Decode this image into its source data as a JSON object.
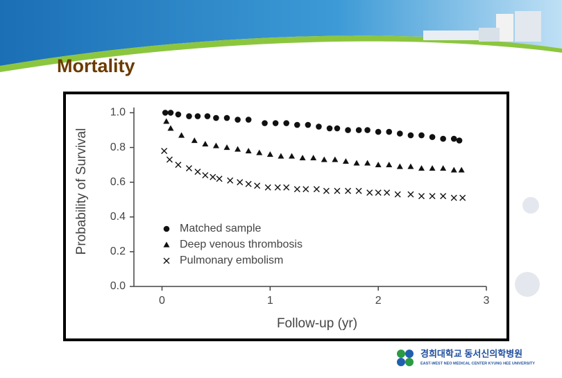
{
  "slide": {
    "title": "Mortality",
    "logo_name": "경희대학교 동서신의학병원",
    "logo_subtitle": "EAST-WEST NEO MEDICAL CENTER KYUNG HEE UNIVERSITY"
  },
  "chart_data": {
    "type": "scatter",
    "x_label": "Follow-up (yr)",
    "y_label": "Probability of Survival",
    "xlim": [
      -0.26,
      3
    ],
    "ylim": [
      0,
      1.03
    ],
    "xticks": [
      0,
      1,
      2,
      3
    ],
    "yticks": [
      {
        "value": 0,
        "label": "0.0"
      },
      0.2,
      0.4,
      0.6,
      0.8,
      {
        "value": 1,
        "label": "1.0"
      }
    ],
    "legend": "lower-left",
    "series": [
      {
        "name": "Matched sample",
        "color": "#111111",
        "marker": "circle",
        "x": [
          0.03,
          0.08,
          0.15,
          0.25,
          0.33,
          0.42,
          0.5,
          0.6,
          0.7,
          0.8,
          0.95,
          1.05,
          1.15,
          1.25,
          1.35,
          1.45,
          1.55,
          1.62,
          1.72,
          1.82,
          1.9,
          2.0,
          2.1,
          2.2,
          2.3,
          2.4,
          2.5,
          2.6,
          2.7,
          2.75
        ],
        "values": [
          1.0,
          1.0,
          0.99,
          0.98,
          0.98,
          0.98,
          0.97,
          0.97,
          0.96,
          0.96,
          0.94,
          0.94,
          0.94,
          0.93,
          0.93,
          0.92,
          0.91,
          0.91,
          0.9,
          0.9,
          0.9,
          0.89,
          0.89,
          0.88,
          0.87,
          0.87,
          0.86,
          0.85,
          0.85,
          0.84
        ]
      },
      {
        "name": "Deep venous thrombosis",
        "color": "#111111",
        "marker": "triangle",
        "x": [
          0.04,
          0.08,
          0.18,
          0.3,
          0.4,
          0.5,
          0.6,
          0.7,
          0.8,
          0.9,
          1.0,
          1.1,
          1.2,
          1.3,
          1.4,
          1.5,
          1.6,
          1.7,
          1.8,
          1.9,
          2.0,
          2.1,
          2.2,
          2.3,
          2.4,
          2.5,
          2.6,
          2.7,
          2.77
        ],
        "values": [
          0.95,
          0.91,
          0.87,
          0.84,
          0.82,
          0.81,
          0.8,
          0.79,
          0.78,
          0.77,
          0.76,
          0.75,
          0.75,
          0.74,
          0.74,
          0.73,
          0.73,
          0.72,
          0.71,
          0.71,
          0.7,
          0.7,
          0.69,
          0.69,
          0.68,
          0.68,
          0.68,
          0.67,
          0.67
        ]
      },
      {
        "name": "Pulmonary embolism",
        "color": "#111111",
        "marker": "x",
        "x": [
          0.02,
          0.07,
          0.15,
          0.25,
          0.33,
          0.4,
          0.47,
          0.53,
          0.63,
          0.72,
          0.8,
          0.88,
          0.98,
          1.07,
          1.15,
          1.25,
          1.33,
          1.43,
          1.52,
          1.62,
          1.72,
          1.82,
          1.92,
          2.0,
          2.08,
          2.18,
          2.3,
          2.4,
          2.5,
          2.6,
          2.7,
          2.78
        ],
        "values": [
          0.78,
          0.73,
          0.7,
          0.68,
          0.66,
          0.64,
          0.63,
          0.62,
          0.61,
          0.6,
          0.59,
          0.58,
          0.57,
          0.57,
          0.57,
          0.56,
          0.56,
          0.56,
          0.55,
          0.55,
          0.55,
          0.55,
          0.54,
          0.54,
          0.54,
          0.53,
          0.53,
          0.52,
          0.52,
          0.52,
          0.51,
          0.51
        ]
      }
    ]
  }
}
